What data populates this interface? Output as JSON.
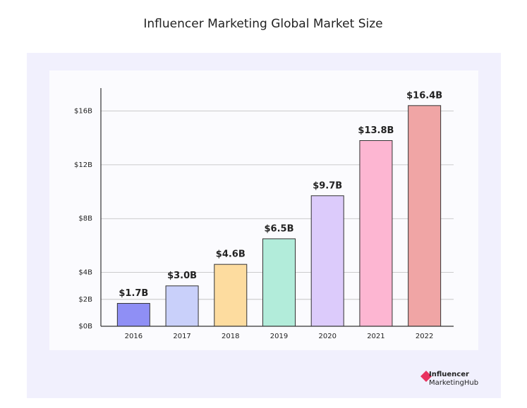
{
  "chart_data": {
    "type": "bar",
    "title": "Influencer Marketing Global Market Size",
    "categories": [
      "2016",
      "2017",
      "2018",
      "2019",
      "2020",
      "2021",
      "2022"
    ],
    "values": [
      1.7,
      3.0,
      4.6,
      6.5,
      9.7,
      13.8,
      16.4
    ],
    "value_labels": [
      "$1.7B",
      "$3.0B",
      "$4.6B",
      "$6.5B",
      "$9.7B",
      "$13.8B",
      "$16.4B"
    ],
    "colors": [
      "#8f8ff5",
      "#c9d0fa",
      "#fddc9f",
      "#b2ecda",
      "#dccbfb",
      "#fdb6d2",
      "#f0a5a5"
    ],
    "ylim": [
      0,
      17.7
    ],
    "yticks": [
      {
        "value": 0,
        "label": "$0B"
      },
      {
        "value": 2,
        "label": "$2B"
      },
      {
        "value": 4,
        "label": "$4B"
      },
      {
        "value": 8,
        "label": "$8B"
      },
      {
        "value": 12,
        "label": "$12B"
      },
      {
        "value": 16,
        "label": "$16B"
      }
    ],
    "grid": true
  },
  "logo": {
    "line1": "Influencer",
    "line2": "MarketingHub"
  }
}
